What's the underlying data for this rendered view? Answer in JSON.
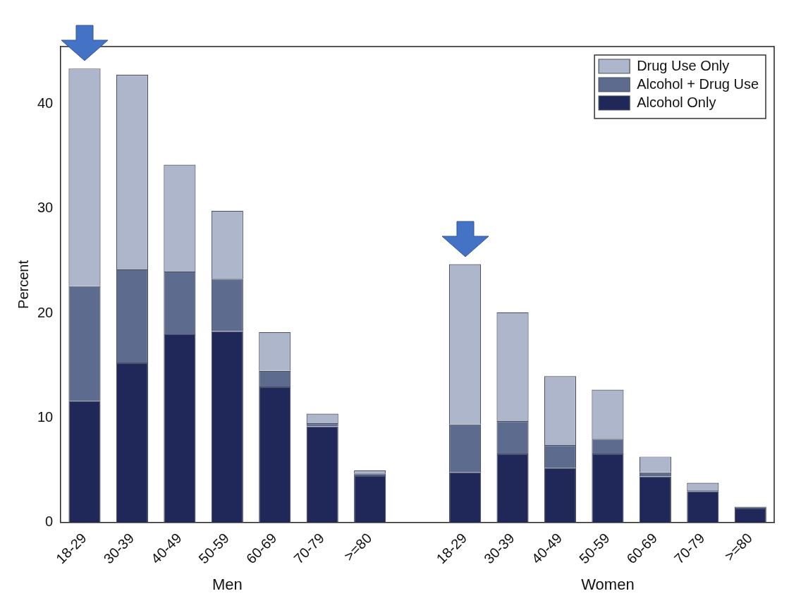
{
  "chart_data": {
    "type": "bar",
    "stacked": true,
    "ylabel": "Percent",
    "categories": [
      "18-29",
      "30-39",
      "40-49",
      "50-59",
      "60-69",
      "70-79",
      ">=80",
      null,
      "18-29",
      "30-39",
      "40-49",
      "50-59",
      "60-69",
      "70-79",
      ">=80"
    ],
    "series": [
      {
        "name": "Alcohol Only",
        "color": "#1f2858",
        "values": [
          11.6,
          15.3,
          18.0,
          18.3,
          13.0,
          9.2,
          4.5,
          null,
          4.8,
          6.6,
          5.2,
          6.6,
          4.4,
          3.0,
          1.4
        ]
      },
      {
        "name": "Alcohol + Drug Use",
        "color": "#5d6c8e",
        "values": [
          11.0,
          8.9,
          6.0,
          5.0,
          1.5,
          0.3,
          0.2,
          null,
          4.6,
          3.1,
          2.2,
          1.4,
          0.4,
          0.1,
          0.1
        ]
      },
      {
        "name": "Drug Use Only",
        "color": "#aeb6cb",
        "values": [
          20.8,
          18.6,
          10.2,
          6.5,
          3.7,
          0.9,
          0.3,
          null,
          15.3,
          10.4,
          6.6,
          4.7,
          1.5,
          0.7,
          null
        ]
      }
    ],
    "annotations": [
      "Men",
      "Women"
    ],
    "ylim": [
      0,
      45.5
    ],
    "yticks": [
      0,
      10,
      20,
      30,
      40
    ],
    "grid": false,
    "legend": "top right"
  }
}
